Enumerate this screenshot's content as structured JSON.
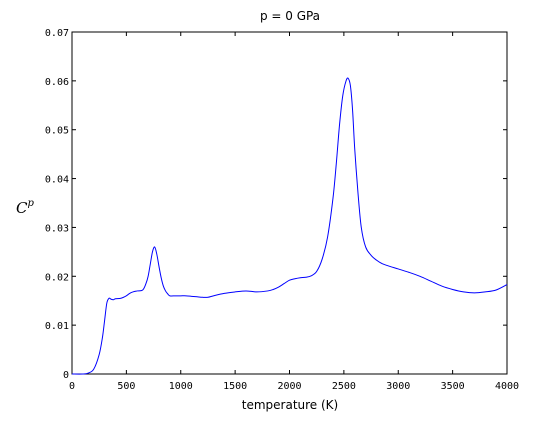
{
  "chart_data": {
    "type": "line",
    "title": "p = 0 GPa",
    "xlabel": "temperature (K)",
    "ylabel": {
      "base": "C",
      "superscript": "p"
    },
    "xlim": [
      0,
      4000
    ],
    "ylim": [
      0,
      0.07
    ],
    "xticks": [
      0,
      500,
      1000,
      1500,
      2000,
      2500,
      3000,
      3500,
      4000
    ],
    "xtick_labels": [
      "0",
      "500",
      "1000",
      "1500",
      "2000",
      "2500",
      "3000",
      "3500",
      "4000"
    ],
    "yticks": [
      0,
      0.01,
      0.02,
      0.03,
      0.04,
      0.05,
      0.06,
      0.07
    ],
    "ytick_labels": [
      "0",
      "0.01",
      "0.02",
      "0.03",
      "0.04",
      "0.05",
      "0.06",
      "0.07"
    ],
    "grid": false,
    "series": [
      {
        "color": "#0000ff",
        "x": [
          0,
          100,
          150,
          200,
          250,
          280,
          300,
          320,
          340,
          360,
          380,
          400,
          450,
          500,
          530,
          560,
          600,
          650,
          680,
          700,
          720,
          740,
          760,
          780,
          800,
          820,
          840,
          860,
          880,
          900,
          950,
          1000,
          1050,
          1100,
          1150,
          1200,
          1250,
          1300,
          1400,
          1500,
          1600,
          1700,
          1800,
          1850,
          1900,
          1950,
          2000,
          2050,
          2100,
          2150,
          2200,
          2250,
          2300,
          2350,
          2400,
          2430,
          2460,
          2490,
          2520,
          2540,
          2560,
          2580,
          2600,
          2630,
          2660,
          2700,
          2750,
          2800,
          2850,
          2900,
          3000,
          3100,
          3200,
          3300,
          3400,
          3500,
          3600,
          3700,
          3800,
          3900,
          4000
        ],
        "y": [
          0,
          0,
          0.0002,
          0.001,
          0.004,
          0.0075,
          0.011,
          0.0145,
          0.0155,
          0.0153,
          0.0152,
          0.0154,
          0.0155,
          0.016,
          0.0165,
          0.0168,
          0.017,
          0.0172,
          0.0185,
          0.02,
          0.0225,
          0.025,
          0.026,
          0.0245,
          0.022,
          0.0197,
          0.018,
          0.017,
          0.0164,
          0.016,
          0.016,
          0.016,
          0.016,
          0.0159,
          0.0158,
          0.0157,
          0.0157,
          0.016,
          0.0165,
          0.0168,
          0.017,
          0.0168,
          0.017,
          0.0173,
          0.0178,
          0.0185,
          0.0192,
          0.0195,
          0.0197,
          0.0198,
          0.0201,
          0.021,
          0.0235,
          0.028,
          0.036,
          0.043,
          0.051,
          0.057,
          0.06,
          0.0605,
          0.059,
          0.054,
          0.046,
          0.037,
          0.03,
          0.026,
          0.0243,
          0.0233,
          0.0226,
          0.0222,
          0.0215,
          0.0208,
          0.02,
          0.019,
          0.018,
          0.0173,
          0.0168,
          0.0166,
          0.0168,
          0.0172,
          0.0183
        ]
      }
    ]
  }
}
